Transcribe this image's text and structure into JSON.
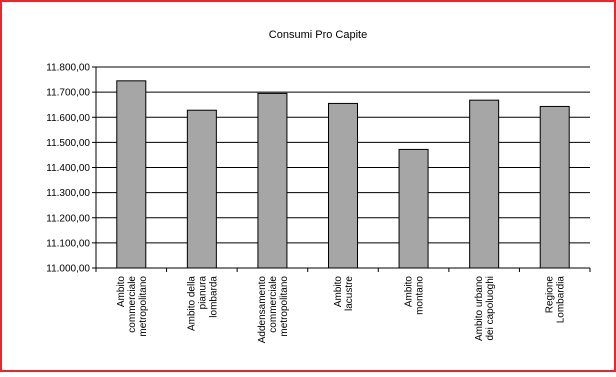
{
  "colors": {
    "frame": "#e8262b",
    "bar": "#a6a6a6",
    "bar_stroke": "#000000",
    "grid": "#000000"
  },
  "chart_data": {
    "type": "bar",
    "title": "Consumi Pro Capite",
    "categories": [
      [
        "Ambito",
        "commerciale",
        "metropolitano"
      ],
      [
        "Ambito della",
        "pianura",
        "lombarda"
      ],
      [
        "Addensamento",
        "commerciale",
        "metropolitano"
      ],
      [
        "Ambito",
        "lacustre"
      ],
      [
        "Ambito",
        "montano"
      ],
      [
        "Ambito urbano",
        "dei capoluoghi"
      ],
      [
        "Regione",
        "Lombardia"
      ]
    ],
    "values": [
      11745,
      11628,
      11695,
      11655,
      11472,
      11668,
      11643
    ],
    "ylim": [
      11000,
      11800
    ],
    "yticks": [
      11000,
      11100,
      11200,
      11300,
      11400,
      11500,
      11600,
      11700,
      11800
    ],
    "ytick_labels": [
      "11.000,00",
      "11.100,00",
      "11.200,00",
      "11.300,00",
      "11.400,00",
      "11.500,00",
      "11.600,00",
      "11.700,00",
      "11.800,00"
    ],
    "grid": true,
    "legend": "none"
  }
}
